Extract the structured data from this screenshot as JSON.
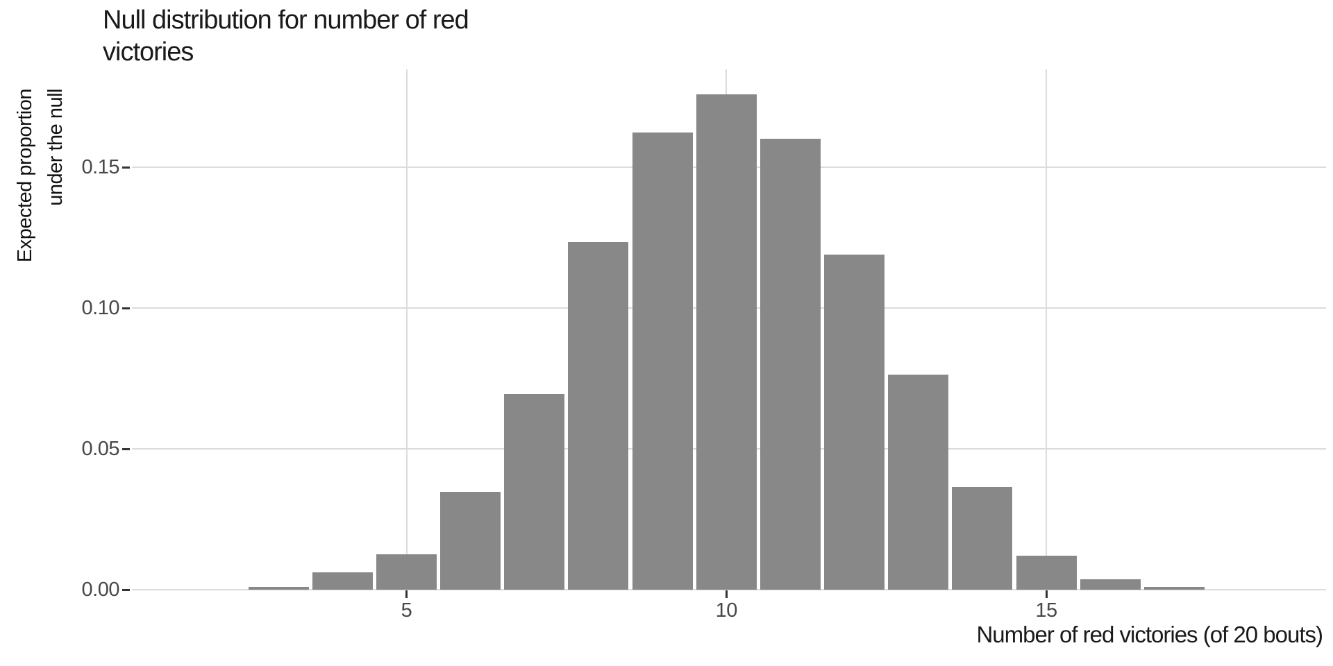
{
  "chart_data": {
    "type": "bar",
    "title": "Null distribution for number of red victories",
    "title_lines": [
      "Null distribution for number of red",
      "victories"
    ],
    "ylabel": "Expected proportion under the null",
    "ylabel_lines": [
      "Expected proportion",
      "under the null"
    ],
    "xlabel": "Number of red victories (of 20 bouts)",
    "categories": [
      3,
      4,
      5,
      6,
      7,
      8,
      9,
      10,
      11,
      12,
      13,
      14,
      15,
      16,
      17
    ],
    "values": [
      0.001,
      0.0062,
      0.0126,
      0.0347,
      0.0695,
      0.1234,
      0.1623,
      0.1759,
      0.1601,
      0.119,
      0.0764,
      0.0365,
      0.0121,
      0.0037,
      0.001
    ],
    "x_ticks": [
      5,
      10,
      15
    ],
    "x_tick_labels": [
      "5",
      "10",
      "15"
    ],
    "y_ticks": [
      0.0,
      0.05,
      0.1,
      0.15
    ],
    "y_tick_labels": [
      "0.00",
      "0.05",
      "0.10",
      "0.15"
    ],
    "xlim": [
      2,
      18
    ],
    "ylim": [
      0,
      0.185
    ],
    "grid": "major-only",
    "legend": "none",
    "colors": {
      "bar": "#888888",
      "grid": "#DCDCDC",
      "tick_mark": "#333333",
      "tick_label": "#474747",
      "axis_title": "#1a1a1a",
      "background": "#ffffff"
    }
  }
}
